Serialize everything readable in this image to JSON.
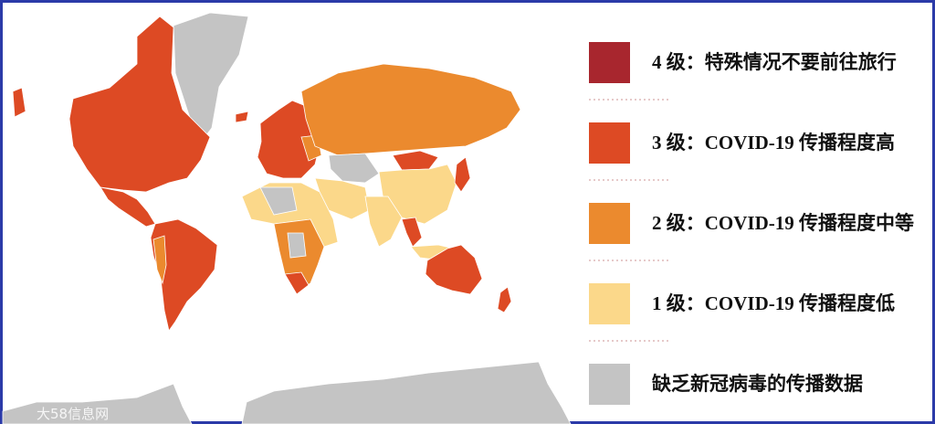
{
  "legend": {
    "items": [
      {
        "label": "4 级：特殊情况不要前往旅行",
        "color": "#a8262e"
      },
      {
        "label": "3 级：COVID-19 传播程度高",
        "color": "#dd4a24"
      },
      {
        "label": "2 级：COVID-19 传播程度中等",
        "color": "#eb8a2e"
      },
      {
        "label": "1 级：COVID-19 传播程度低",
        "color": "#fbd88a"
      },
      {
        "label": "缺乏新冠病毒的传播数据",
        "color": "#c4c4c4"
      }
    ]
  },
  "watermark": "大58信息网"
}
